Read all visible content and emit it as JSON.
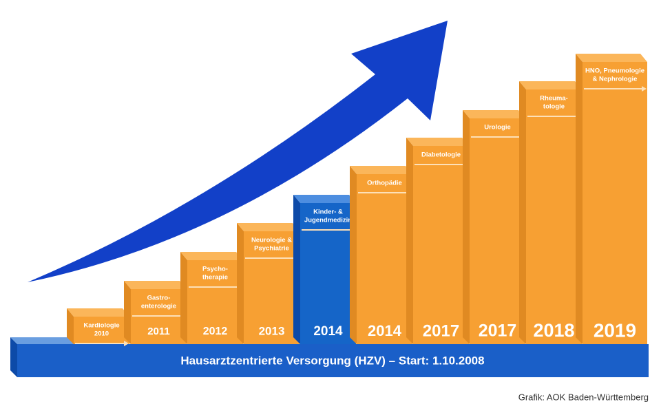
{
  "base": {
    "text": "Hausarztzentrierte Versorgung (HZV) – Start: 1.10.2008"
  },
  "credit": "Grafik: AOK Baden-Württemberg",
  "steps": [
    {
      "label": [
        "Kardiologie",
        "2010"
      ],
      "year": null
    },
    {
      "label": [
        "Gastro-",
        "enterologie"
      ],
      "year": "2011"
    },
    {
      "label": [
        "Psycho-",
        "therapie"
      ],
      "year": "2012"
    },
    {
      "label": [
        "Neurologie &",
        "Psychiatrie"
      ],
      "year": "2013"
    },
    {
      "label": [
        "Kinder- &",
        "Jugendmedizin"
      ],
      "year": "2014"
    },
    {
      "label": [
        "Orthopädie"
      ],
      "year": "2014"
    },
    {
      "label": [
        "Diabetologie"
      ],
      "year": "2017"
    },
    {
      "label": [
        "Urologie"
      ],
      "year": "2017"
    },
    {
      "label": [
        "Rheuma-",
        "tologie"
      ],
      "year": "2018"
    },
    {
      "label": [
        "HNO, Pneumologie",
        "& Nephrologie"
      ],
      "year": "2019"
    }
  ]
}
